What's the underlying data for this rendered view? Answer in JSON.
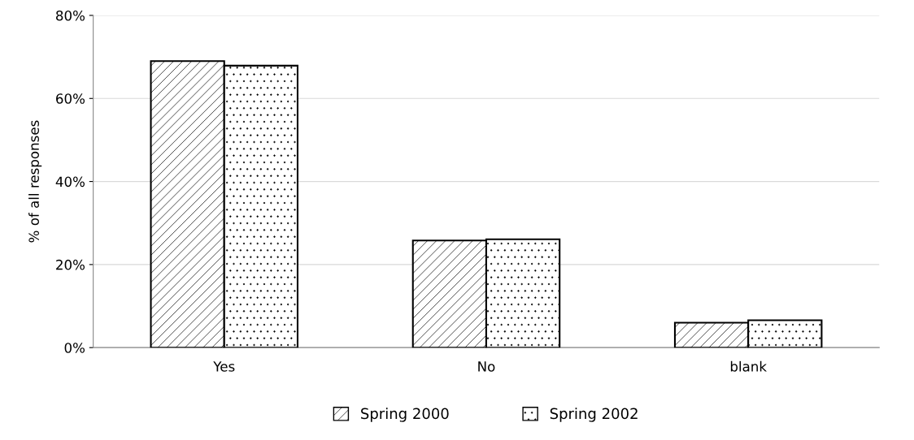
{
  "chart_data": {
    "type": "bar",
    "ylabel": "% of all responses",
    "categories": [
      "Yes",
      "No",
      "blank"
    ],
    "series": [
      {
        "name": "Spring 2000",
        "color": "#000000",
        "values": [
          69.0,
          25.8,
          6.0
        ]
      },
      {
        "name": "Spring 2002",
        "color": "#000000",
        "values": [
          67.9,
          26.1,
          6.6
        ]
      }
    ],
    "ylim": [
      0,
      80
    ],
    "yticks": [
      {
        "value": 0,
        "label": "0%"
      },
      {
        "value": 20,
        "label": "20%"
      },
      {
        "value": 40,
        "label": "40%"
      },
      {
        "value": 60,
        "label": "60%"
      },
      {
        "value": 80,
        "label": "80%"
      }
    ],
    "grid": "y",
    "legend": "bottom"
  }
}
